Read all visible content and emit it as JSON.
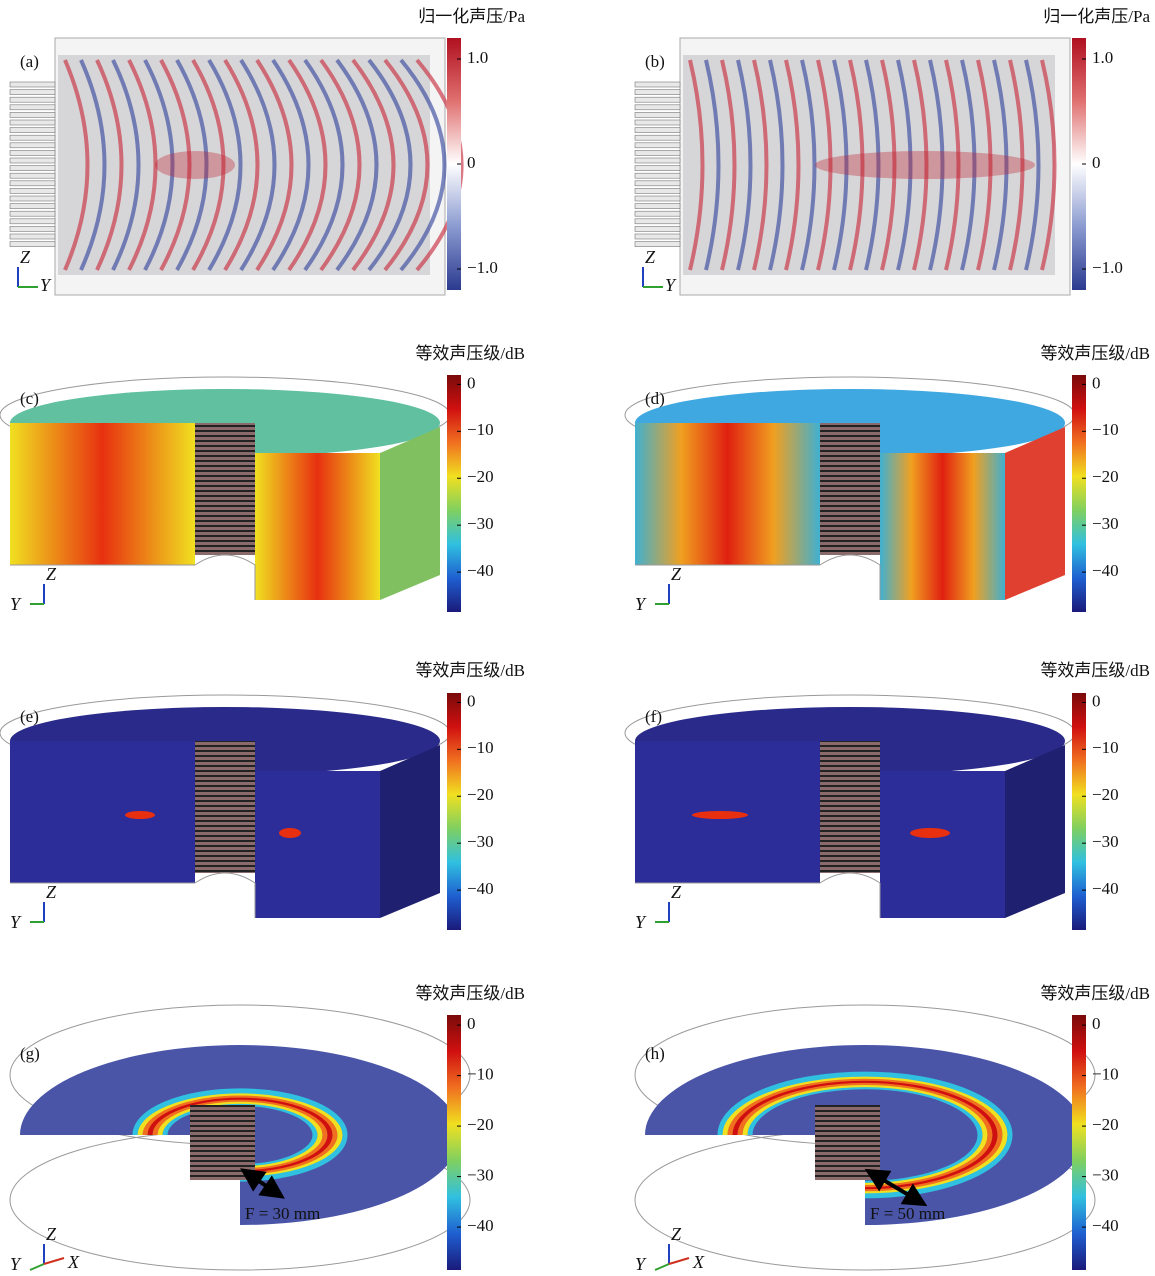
{
  "panels": [
    {
      "label": "(a)",
      "colorbar": {
        "title": "归一化声压/Pa",
        "lim": [
          -1.2,
          1.2
        ],
        "ticks": [
          {
            "value": 1,
            "label": "1.0"
          },
          0,
          {
            "value": -1,
            "label": "−1.0"
          }
        ],
        "colors": [
          "#2b3a8f",
          "#8a9ad0",
          "#ffffff",
          "#e07070",
          "#b01020"
        ]
      },
      "axes": [
        "Z",
        "Y"
      ]
    },
    {
      "label": "(b)",
      "colorbar": {
        "title": "归一化声压/Pa",
        "lim": [
          -1.2,
          1.2
        ],
        "ticks": [
          {
            "value": 1,
            "label": "1.0"
          },
          0,
          {
            "value": -1,
            "label": "−1.0"
          }
        ],
        "colors": [
          "#2b3a8f",
          "#8a9ad0",
          "#ffffff",
          "#e07070",
          "#b01020"
        ]
      },
      "axes": [
        "Z",
        "Y"
      ]
    },
    {
      "label": "(c)",
      "colorbar": {
        "title": "等效声压级/dB",
        "lim": [
          -48.5,
          2
        ],
        "ticks": [
          0,
          {
            "value": -10,
            "label": "−10"
          },
          {
            "value": -20,
            "label": "−20"
          },
          {
            "value": -30,
            "label": "−30"
          },
          {
            "value": -40,
            "label": "−40"
          }
        ],
        "colors": [
          "#1a1a7a",
          "#1f5fd0",
          "#30c0e0",
          "#7fd060",
          "#f0e020",
          "#f07020",
          "#d01010",
          "#7a0a0a"
        ]
      },
      "axes": [
        "Z",
        "Y"
      ]
    },
    {
      "label": "(d)",
      "colorbar": {
        "title": "等效声压级/dB",
        "lim": [
          -48.5,
          2
        ],
        "ticks": [
          0,
          {
            "value": -10,
            "label": "−10"
          },
          {
            "value": -20,
            "label": "−20"
          },
          {
            "value": -30,
            "label": "−30"
          },
          {
            "value": -40,
            "label": "−40"
          }
        ],
        "colors": [
          "#1a1a7a",
          "#1f5fd0",
          "#30c0e0",
          "#7fd060",
          "#f0e020",
          "#f07020",
          "#d01010",
          "#7a0a0a"
        ]
      },
      "axes": [
        "Z",
        "Y"
      ]
    },
    {
      "label": "(e)",
      "colorbar": {
        "title": "等效声压级/dB",
        "lim": [
          -48.5,
          2
        ],
        "ticks": [
          0,
          {
            "value": -10,
            "label": "−10"
          },
          {
            "value": -20,
            "label": "−20"
          },
          {
            "value": -30,
            "label": "−30"
          },
          {
            "value": -40,
            "label": "−40"
          }
        ],
        "colors": [
          "#1a1a7a",
          "#1f5fd0",
          "#30c0e0",
          "#7fd060",
          "#f0e020",
          "#f07020",
          "#d01010",
          "#7a0a0a"
        ]
      },
      "axes": [
        "Z",
        "Y"
      ]
    },
    {
      "label": "(f)",
      "colorbar": {
        "title": "等效声压级/dB",
        "lim": [
          -48.5,
          2
        ],
        "ticks": [
          0,
          {
            "value": -10,
            "label": "−10"
          },
          {
            "value": -20,
            "label": "−20"
          },
          {
            "value": -30,
            "label": "−30"
          },
          {
            "value": -40,
            "label": "−40"
          }
        ],
        "colors": [
          "#1a1a7a",
          "#1f5fd0",
          "#30c0e0",
          "#7fd060",
          "#f0e020",
          "#f07020",
          "#d01010",
          "#7a0a0a"
        ]
      },
      "axes": [
        "Z",
        "Y"
      ]
    },
    {
      "label": "(g)",
      "colorbar": {
        "title": "等效声压级/dB",
        "lim": [
          -48.5,
          2
        ],
        "ticks": [
          0,
          {
            "value": -10,
            "label": "−10"
          },
          {
            "value": -20,
            "label": "−20"
          },
          {
            "value": -30,
            "label": "−30"
          },
          {
            "value": -40,
            "label": "−40"
          }
        ],
        "colors": [
          "#1a1a7a",
          "#1f5fd0",
          "#30c0e0",
          "#7fd060",
          "#f0e020",
          "#f07020",
          "#d01010",
          "#7a0a0a"
        ]
      },
      "axes": [
        "Z",
        "Y",
        "X"
      ],
      "annotation": "F = 30 mm"
    },
    {
      "label": "(h)",
      "colorbar": {
        "title": "等效声压级/dB",
        "lim": [
          -48.5,
          2
        ],
        "ticks": [
          0,
          {
            "value": -10,
            "label": "−10"
          },
          {
            "value": -20,
            "label": "−20"
          },
          {
            "value": -30,
            "label": "−30"
          },
          {
            "value": -40,
            "label": "−40"
          }
        ],
        "colors": [
          "#1a1a7a",
          "#1f5fd0",
          "#30c0e0",
          "#7fd060",
          "#f0e020",
          "#f07020",
          "#d01010",
          "#7a0a0a"
        ]
      },
      "axes": [
        "Z",
        "Y",
        "X"
      ],
      "annotation": "F = 50 mm"
    }
  ]
}
